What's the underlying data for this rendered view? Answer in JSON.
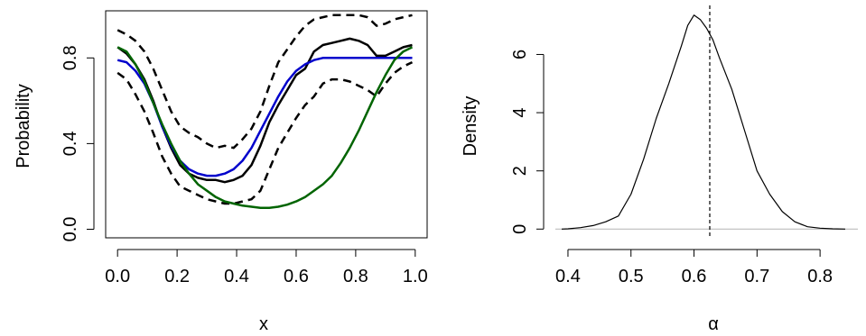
{
  "chart_data": [
    {
      "type": "line",
      "title": "",
      "xlabel": "x",
      "ylabel": "Probability",
      "xlim": [
        -0.04,
        1.04
      ],
      "ylim": [
        -0.04,
        1.02
      ],
      "xticks": [
        "0.0",
        "0.2",
        "0.4",
        "0.6",
        "0.8",
        "1.0"
      ],
      "yticks": [
        "0.0",
        "0.4",
        "0.8"
      ],
      "xtick_values": [
        0,
        0.2,
        0.4,
        0.6,
        0.8,
        1.0
      ],
      "ytick_values": [
        0,
        0.4,
        0.8
      ],
      "grid": false,
      "legend": "none",
      "series": [
        {
          "color": "#000000",
          "style": "solid",
          "width": 2.5,
          "x": [
            0.0,
            0.03,
            0.06,
            0.09,
            0.12,
            0.15,
            0.18,
            0.21,
            0.24,
            0.27,
            0.3,
            0.33,
            0.36,
            0.39,
            0.42,
            0.45,
            0.48,
            0.51,
            0.54,
            0.57,
            0.6,
            0.63,
            0.66,
            0.69,
            0.72,
            0.75,
            0.78,
            0.81,
            0.84,
            0.87,
            0.9,
            0.93,
            0.96,
            0.99
          ],
          "y": [
            0.85,
            0.82,
            0.77,
            0.7,
            0.6,
            0.48,
            0.38,
            0.3,
            0.26,
            0.24,
            0.23,
            0.23,
            0.22,
            0.23,
            0.25,
            0.3,
            0.39,
            0.5,
            0.58,
            0.65,
            0.72,
            0.75,
            0.83,
            0.86,
            0.87,
            0.88,
            0.89,
            0.88,
            0.86,
            0.81,
            0.81,
            0.83,
            0.85,
            0.86
          ]
        },
        {
          "color": "#000000",
          "style": "dashed",
          "width": 2.5,
          "x": [
            0.0,
            0.03,
            0.06,
            0.09,
            0.12,
            0.15,
            0.18,
            0.21,
            0.24,
            0.27,
            0.3,
            0.33,
            0.36,
            0.39,
            0.42,
            0.45,
            0.48,
            0.51,
            0.54,
            0.57,
            0.6,
            0.63,
            0.66,
            0.69,
            0.72,
            0.75,
            0.78,
            0.81,
            0.84,
            0.87,
            0.9,
            0.93,
            0.96,
            0.99
          ],
          "y": [
            0.93,
            0.91,
            0.88,
            0.83,
            0.75,
            0.65,
            0.55,
            0.48,
            0.45,
            0.43,
            0.4,
            0.38,
            0.39,
            0.38,
            0.42,
            0.47,
            0.55,
            0.67,
            0.78,
            0.84,
            0.9,
            0.95,
            0.98,
            0.99,
            1.0,
            1.0,
            1.0,
            1.0,
            0.99,
            0.95,
            0.96,
            0.98,
            0.99,
            1.0
          ]
        },
        {
          "color": "#000000",
          "style": "dashed",
          "width": 2.5,
          "x": [
            0.0,
            0.03,
            0.06,
            0.09,
            0.12,
            0.15,
            0.18,
            0.21,
            0.24,
            0.27,
            0.3,
            0.33,
            0.36,
            0.39,
            0.42,
            0.45,
            0.48,
            0.51,
            0.54,
            0.57,
            0.6,
            0.63,
            0.66,
            0.69,
            0.72,
            0.75,
            0.78,
            0.81,
            0.84,
            0.87,
            0.9,
            0.93,
            0.96,
            0.99
          ],
          "y": [
            0.73,
            0.7,
            0.63,
            0.55,
            0.45,
            0.34,
            0.26,
            0.2,
            0.18,
            0.16,
            0.14,
            0.13,
            0.12,
            0.12,
            0.13,
            0.14,
            0.18,
            0.28,
            0.38,
            0.45,
            0.52,
            0.58,
            0.62,
            0.68,
            0.7,
            0.7,
            0.69,
            0.67,
            0.65,
            0.62,
            0.68,
            0.73,
            0.76,
            0.78
          ]
        },
        {
          "color": "#0000cc",
          "style": "solid",
          "width": 2.5,
          "x": [
            0.0,
            0.03,
            0.06,
            0.09,
            0.12,
            0.15,
            0.18,
            0.21,
            0.24,
            0.27,
            0.3,
            0.33,
            0.36,
            0.39,
            0.42,
            0.45,
            0.48,
            0.51,
            0.54,
            0.57,
            0.6,
            0.63,
            0.66,
            0.69,
            0.72,
            0.75,
            0.78,
            0.81,
            0.84,
            0.87,
            0.9,
            0.93,
            0.96,
            0.99
          ],
          "y": [
            0.79,
            0.78,
            0.74,
            0.68,
            0.59,
            0.48,
            0.39,
            0.32,
            0.28,
            0.26,
            0.25,
            0.25,
            0.26,
            0.28,
            0.32,
            0.38,
            0.46,
            0.54,
            0.62,
            0.69,
            0.74,
            0.77,
            0.79,
            0.8,
            0.8,
            0.8,
            0.8,
            0.8,
            0.8,
            0.8,
            0.8,
            0.8,
            0.8,
            0.8
          ]
        },
        {
          "color": "#006400",
          "style": "solid",
          "width": 2.5,
          "x": [
            0.0,
            0.03,
            0.06,
            0.09,
            0.12,
            0.15,
            0.18,
            0.21,
            0.24,
            0.27,
            0.3,
            0.33,
            0.36,
            0.39,
            0.42,
            0.45,
            0.48,
            0.51,
            0.54,
            0.57,
            0.6,
            0.63,
            0.66,
            0.69,
            0.72,
            0.75,
            0.78,
            0.81,
            0.84,
            0.87,
            0.9,
            0.93,
            0.96,
            0.99
          ],
          "y": [
            0.85,
            0.83,
            0.77,
            0.69,
            0.59,
            0.49,
            0.4,
            0.32,
            0.26,
            0.21,
            0.18,
            0.15,
            0.13,
            0.12,
            0.11,
            0.105,
            0.1,
            0.1,
            0.105,
            0.115,
            0.13,
            0.15,
            0.18,
            0.21,
            0.25,
            0.31,
            0.38,
            0.46,
            0.55,
            0.64,
            0.72,
            0.79,
            0.83,
            0.85
          ]
        }
      ]
    },
    {
      "type": "line",
      "title": "",
      "xlabel": "α",
      "ylabel": "Density",
      "xlim": [
        0.38,
        0.86
      ],
      "ylim": [
        -0.3,
        7.5
      ],
      "xticks": [
        "0.4",
        "0.5",
        "0.6",
        "0.7",
        "0.8"
      ],
      "yticks": [
        "0",
        "2",
        "4",
        "6"
      ],
      "xtick_values": [
        0.4,
        0.5,
        0.6,
        0.7,
        0.8
      ],
      "ytick_values": [
        0,
        2,
        4,
        6
      ],
      "grid": false,
      "legend": "none",
      "baseline": 0,
      "vline": 0.625,
      "series": [
        {
          "color": "#000000",
          "style": "solid",
          "width": 1.2,
          "x": [
            0.39,
            0.4,
            0.42,
            0.44,
            0.46,
            0.48,
            0.5,
            0.52,
            0.54,
            0.56,
            0.58,
            0.59,
            0.6,
            0.61,
            0.62,
            0.63,
            0.64,
            0.66,
            0.68,
            0.7,
            0.72,
            0.74,
            0.76,
            0.78,
            0.8,
            0.82,
            0.84
          ],
          "y": [
            0.0,
            0.01,
            0.05,
            0.12,
            0.25,
            0.45,
            1.2,
            2.4,
            3.8,
            5.0,
            6.3,
            7.0,
            7.35,
            7.2,
            6.9,
            6.5,
            5.9,
            4.8,
            3.4,
            2.0,
            1.2,
            0.6,
            0.25,
            0.08,
            0.03,
            0.01,
            0.0
          ]
        }
      ]
    }
  ]
}
